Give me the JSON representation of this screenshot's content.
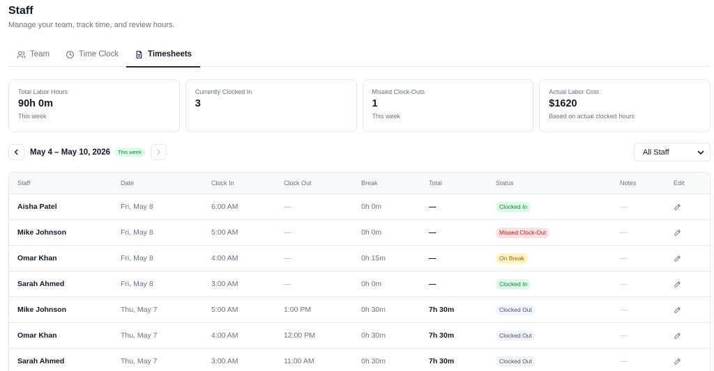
{
  "page": {
    "title": "Staff",
    "subtitle": "Manage your team, track time, and review hours."
  },
  "tabs": [
    {
      "label": "Team",
      "icon": "users-icon",
      "active": false
    },
    {
      "label": "Time Clock",
      "icon": "clock-icon",
      "active": false
    },
    {
      "label": "Timesheets",
      "icon": "document-icon",
      "active": true
    }
  ],
  "cards": [
    {
      "label": "Total Labor Hours",
      "value": "90h 0m",
      "sub": "This week"
    },
    {
      "label": "Currently Clocked In",
      "value": "3",
      "sub": ""
    },
    {
      "label": "Missed Clock-Outs",
      "value": "1",
      "sub": "This week"
    },
    {
      "label": "Actual Labor Cost",
      "value": "$1620",
      "sub": "Based on actual clocked hours"
    }
  ],
  "week": {
    "range": "May 4 – May 10, 2026",
    "badge": "This week"
  },
  "filter": {
    "selected": "All Staff"
  },
  "table": {
    "headers": {
      "staff": "Staff",
      "date": "Date",
      "clock_in": "Clock In",
      "clock_out": "Clock Out",
      "break": "Break",
      "total": "Total",
      "status": "Status",
      "notes": "Notes",
      "edit": "Edit"
    },
    "rows": [
      {
        "staff": "Aisha Patel",
        "date": "Fri, May 8",
        "clock_in": "6:00 AM",
        "clock_out": "—",
        "break": "0h 0m",
        "total": "—",
        "status": "Clocked In",
        "notes": "—"
      },
      {
        "staff": "Mike Johnson",
        "date": "Fri, May 8",
        "clock_in": "5:00 AM",
        "clock_out": "—",
        "break": "0h 0m",
        "total": "—",
        "status": "Missed Clock-Out",
        "notes": "—"
      },
      {
        "staff": "Omar Khan",
        "date": "Fri, May 8",
        "clock_in": "4:00 AM",
        "clock_out": "—",
        "break": "0h 15m",
        "total": "—",
        "status": "On Break",
        "notes": "—"
      },
      {
        "staff": "Sarah Ahmed",
        "date": "Fri, May 8",
        "clock_in": "3:00 AM",
        "clock_out": "—",
        "break": "0h 0m",
        "total": "—",
        "status": "Clocked In",
        "notes": "—"
      },
      {
        "staff": "Mike Johnson",
        "date": "Thu, May 7",
        "clock_in": "5:00 AM",
        "clock_out": "1:00 PM",
        "break": "0h 30m",
        "total": "7h 30m",
        "status": "Clocked Out",
        "notes": "—"
      },
      {
        "staff": "Omar Khan",
        "date": "Thu, May 7",
        "clock_in": "4:00 AM",
        "clock_out": "12:00 PM",
        "break": "0h 30m",
        "total": "7h 30m",
        "status": "Clocked Out",
        "notes": "—"
      },
      {
        "staff": "Sarah Ahmed",
        "date": "Thu, May 7",
        "clock_in": "3:00 AM",
        "clock_out": "11:00 AM",
        "break": "0h 30m",
        "total": "7h 30m",
        "status": "Clocked Out",
        "notes": "—"
      }
    ]
  },
  "status_colors": {
    "Clocked In": "#dcfce7",
    "Missed Clock-Out": "#fee2e2",
    "On Break": "#fef3c7",
    "Clocked Out": "#f1f5f9"
  }
}
